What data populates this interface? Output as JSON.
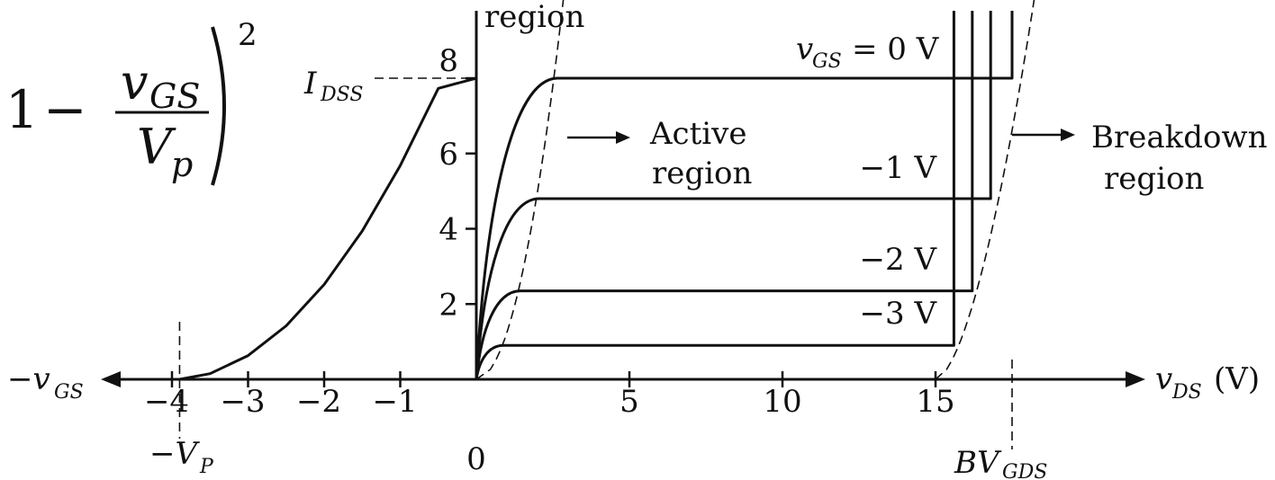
{
  "chart_data": {
    "type": "line",
    "transfer_curve": {
      "formula": {
        "one": "1",
        "minus": "−",
        "numerator": "v",
        "numerator_sub": "GS",
        "denominator": "V",
        "denominator_sub": "p",
        "exponent": "2"
      },
      "x_label": "−v",
      "x_label_sub": "GS",
      "vp_label": "−V",
      "vp_label_sub": "P",
      "idss_label": "I",
      "idss_label_sub": "DSS",
      "vgs_ticks": [
        "−4",
        "−3",
        "−2",
        "−1"
      ],
      "vgs_tick_values": [
        -4,
        -3,
        -2,
        -1
      ],
      "vp": -3.9,
      "idss": 8,
      "x": [
        -3.9,
        -3.5,
        -3,
        -2.5,
        -2,
        -1.5,
        -1,
        -0.5,
        0
      ],
      "y": [
        0,
        0.15,
        0.63,
        1.42,
        2.52,
        3.94,
        5.68,
        7.73,
        8
      ]
    },
    "output_curves": {
      "x_label": "v",
      "x_label_sub": "DS",
      "x_unit": "(V)",
      "vds_ticks": [
        "0",
        "5",
        "10",
        "15"
      ],
      "vds_tick_values": [
        0,
        5,
        10,
        15
      ],
      "id_ticks": [
        "2",
        "4",
        "6",
        "8"
      ],
      "id_tick_values": [
        2,
        4,
        6,
        8
      ],
      "series": [
        {
          "name_var": "v",
          "name_sub": "GS",
          "name_val": "= 0 V",
          "saturation": 8,
          "breakdown_vds": 17.5
        },
        {
          "name_var": "",
          "name_sub": "",
          "name_val": "−1 V",
          "saturation": 4.8,
          "breakdown_vds": 16.8
        },
        {
          "name_var": "",
          "name_sub": "",
          "name_val": "−2 V",
          "saturation": 2.35,
          "breakdown_vds": 16.2
        },
        {
          "name_var": "",
          "name_sub": "",
          "name_val": "−3 V",
          "saturation": 0.9,
          "breakdown_vds": 15.6
        }
      ],
      "bvgds_label": "BV",
      "bvgds_label_sub": "GDS",
      "bvgds": 17.5
    },
    "region_labels": {
      "ohmic_fragment": "region",
      "active_line1": "Active",
      "active_line2": "region",
      "breakdown_line1": "Breakdown",
      "breakdown_line2": "region"
    },
    "xlim_vds": [
      0,
      23
    ],
    "ylim_id": [
      0,
      9.6
    ],
    "xlim_vgs": [
      -5,
      0
    ],
    "grid": false
  }
}
